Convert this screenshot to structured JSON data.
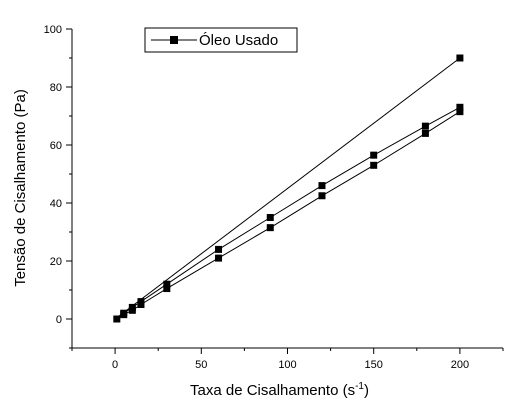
{
  "chart_data": {
    "type": "line",
    "xlabel": "Taxa de Cisalhamento (s",
    "xlabel_superscript": "-1",
    "xlabel_close": ")",
    "ylabel": "Tensão de Cisalhamento (Pa)",
    "xlim": [
      -25,
      225
    ],
    "ylim": [
      -10,
      100
    ],
    "xticks": [
      0,
      50,
      100,
      150,
      200
    ],
    "yticks": [
      0,
      20,
      40,
      60,
      80,
      100
    ],
    "grid": false,
    "legend": {
      "position": "top-left",
      "label": "Óleo Usado"
    },
    "series": [
      {
        "name": "Óleo Usado",
        "marker": "square",
        "lines": [
          {
            "x": [
              0,
              200
            ],
            "y": [
              0,
              90
            ]
          },
          {
            "x": [
              0,
              5,
              10,
              15,
              30,
              60,
              90,
              120,
              150,
              180,
              200
            ],
            "y": [
              0,
              2,
              4,
              6,
              12,
              24,
              35,
              46,
              56.5,
              66.5,
              73
            ]
          },
          {
            "x": [
              0,
              5,
              10,
              15,
              30,
              60,
              90,
              120,
              150,
              180,
              200
            ],
            "y": [
              0,
              1.5,
              3,
              5,
              10.5,
              21,
              31.5,
              42.5,
              53,
              64,
              71.5
            ]
          }
        ],
        "points": [
          {
            "x": 1,
            "y": 0
          },
          {
            "x": 5,
            "y": 1.5
          },
          {
            "x": 5,
            "y": 2
          },
          {
            "x": 10,
            "y": 3
          },
          {
            "x": 10,
            "y": 4
          },
          {
            "x": 15,
            "y": 5
          },
          {
            "x": 15,
            "y": 6
          },
          {
            "x": 30,
            "y": 10.5
          },
          {
            "x": 30,
            "y": 12
          },
          {
            "x": 60,
            "y": 21
          },
          {
            "x": 60,
            "y": 24
          },
          {
            "x": 90,
            "y": 31.5
          },
          {
            "x": 90,
            "y": 35
          },
          {
            "x": 120,
            "y": 42.5
          },
          {
            "x": 120,
            "y": 46
          },
          {
            "x": 150,
            "y": 53
          },
          {
            "x": 150,
            "y": 56.5
          },
          {
            "x": 180,
            "y": 64
          },
          {
            "x": 180,
            "y": 66.5
          },
          {
            "x": 200,
            "y": 71.5
          },
          {
            "x": 200,
            "y": 73
          },
          {
            "x": 200,
            "y": 90
          }
        ]
      }
    ]
  }
}
